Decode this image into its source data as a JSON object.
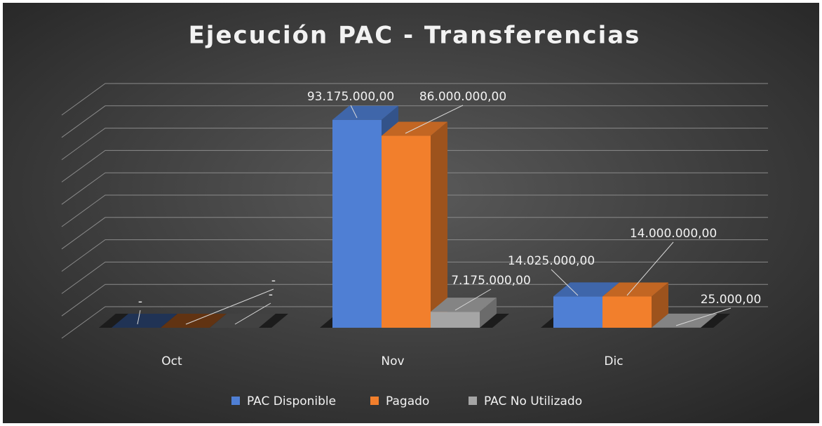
{
  "chart_data": {
    "type": "bar3d",
    "title": "Ejecución PAC - Transferencias",
    "categories": [
      "Oct",
      "Nov",
      "Dic"
    ],
    "series": [
      {
        "name": "PAC Disponible",
        "color": "#4f7fd4",
        "values": [
          0,
          93175000,
          14025000
        ],
        "value_labels": [
          "-",
          "93.175.000,00",
          "14.025.000,00"
        ]
      },
      {
        "name": "Pagado",
        "color": "#f27f2c",
        "values": [
          0,
          86000000,
          14000000
        ],
        "value_labels": [
          "-",
          "86.000.000,00",
          "14.000.000,00"
        ]
      },
      {
        "name": "PAC No Utilizado",
        "color": "#a5a5a5",
        "values": [
          0,
          7175000,
          25000
        ],
        "value_labels": [
          "-",
          "7.175.000,00",
          "25.000,00"
        ]
      }
    ],
    "ylim": [
      0,
      100000000
    ],
    "yticks": [
      0,
      10000000,
      20000000,
      30000000,
      40000000,
      50000000,
      60000000,
      70000000,
      80000000,
      90000000,
      100000000
    ],
    "grid": true,
    "legend": "bottom"
  }
}
